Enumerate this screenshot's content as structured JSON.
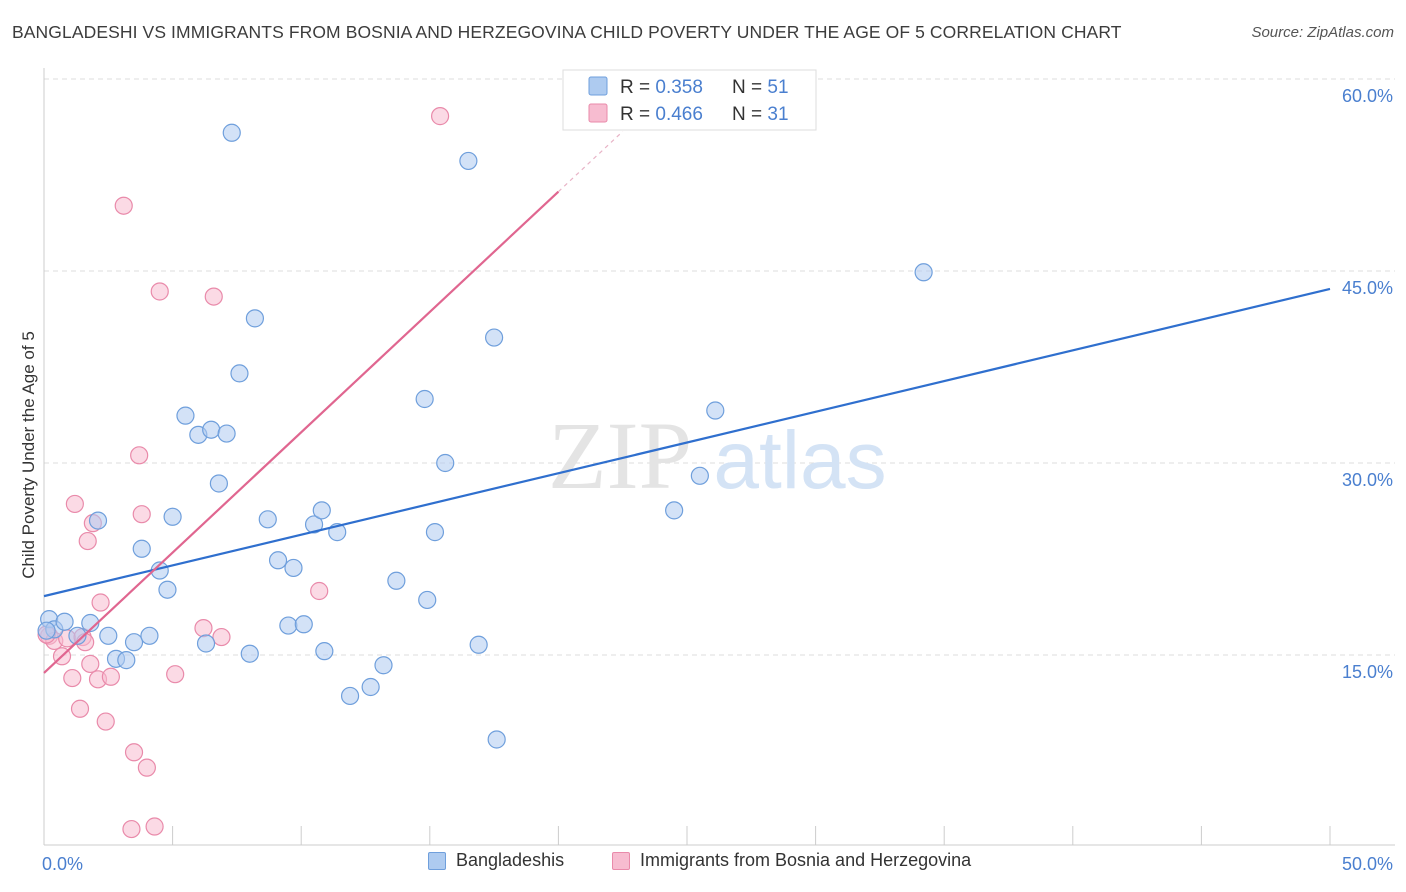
{
  "title": "BANGLADESHI VS IMMIGRANTS FROM BOSNIA AND HERZEGOVINA CHILD POVERTY UNDER THE AGE OF 5 CORRELATION CHART",
  "source": "Source: ZipAtlas.com",
  "watermark": {
    "zip": "ZIP",
    "atlas": "atlas"
  },
  "colors": {
    "blue_fill": "#aecbf0",
    "blue_stroke": "#6f9fdc",
    "blue_line": "#2f6fce",
    "pink_fill": "#f7bcd0",
    "pink_stroke": "#e98aaa",
    "pink_line": "#e06690",
    "tick_text": "#4a7fcf",
    "grid": "#dddddd"
  },
  "legend": {
    "rows": [
      {
        "r_label": "R = ",
        "r_value": "0.358",
        "n_label": "N = ",
        "n_value": "51",
        "series": "blue"
      },
      {
        "r_label": "R = ",
        "r_value": "0.466",
        "n_label": "N = ",
        "n_value": "31",
        "series": "pink"
      }
    ]
  },
  "bottom_legend": [
    "Bangladeshis",
    "Immigrants from Bosnia and Herzegovina"
  ],
  "chart_data": {
    "type": "scatter",
    "title": "BANGLADESHI VS IMMIGRANTS FROM BOSNIA AND HERZEGOVINA CHILD POVERTY UNDER THE AGE OF 5 CORRELATION CHART",
    "xlabel": "",
    "ylabel": "Child Poverty Under the Age of 5",
    "xlim": [
      0,
      50
    ],
    "ylim": [
      0,
      62
    ],
    "x_tick_labels": [
      "0.0%",
      "50.0%"
    ],
    "y_ticks": [
      15,
      30,
      45,
      60
    ],
    "y_tick_labels": [
      "15.0%",
      "30.0%",
      "45.0%",
      "60.0%"
    ],
    "grid": true,
    "legend_position": "top-center",
    "series": [
      {
        "name": "Bangladeshis",
        "color": "blue",
        "r": 0.358,
        "n": 51,
        "trend": {
          "x": [
            0,
            50
          ],
          "y": [
            19.6,
            43.6
          ]
        },
        "points": [
          [
            0.2,
            17.8
          ],
          [
            0.4,
            17.0
          ],
          [
            0.8,
            17.6
          ],
          [
            1.3,
            16.5
          ],
          [
            1.8,
            17.5
          ],
          [
            2.1,
            25.5
          ],
          [
            2.5,
            16.5
          ],
          [
            2.8,
            14.7
          ],
          [
            3.2,
            14.6
          ],
          [
            3.5,
            16.0
          ],
          [
            3.8,
            23.3
          ],
          [
            4.1,
            16.5
          ],
          [
            4.5,
            21.6
          ],
          [
            4.8,
            20.1
          ],
          [
            5.0,
            25.8
          ],
          [
            5.5,
            33.7
          ],
          [
            6.0,
            32.2
          ],
          [
            6.3,
            15.9
          ],
          [
            6.5,
            32.6
          ],
          [
            6.8,
            28.4
          ],
          [
            7.1,
            32.3
          ],
          [
            7.3,
            55.8
          ],
          [
            7.6,
            37.0
          ],
          [
            8.0,
            15.1
          ],
          [
            8.2,
            41.3
          ],
          [
            8.7,
            25.6
          ],
          [
            9.1,
            22.4
          ],
          [
            9.5,
            17.3
          ],
          [
            9.7,
            21.8
          ],
          [
            10.1,
            17.4
          ],
          [
            10.5,
            25.2
          ],
          [
            10.8,
            26.3
          ],
          [
            10.9,
            15.3
          ],
          [
            11.4,
            24.6
          ],
          [
            11.9,
            11.8
          ],
          [
            12.7,
            12.5
          ],
          [
            13.2,
            14.2
          ],
          [
            13.7,
            20.8
          ],
          [
            14.8,
            35.0
          ],
          [
            14.9,
            19.3
          ],
          [
            15.2,
            24.6
          ],
          [
            15.6,
            30.0
          ],
          [
            16.5,
            53.6
          ],
          [
            16.9,
            15.8
          ],
          [
            17.5,
            39.8
          ],
          [
            17.6,
            8.4
          ],
          [
            24.5,
            26.3
          ],
          [
            25.5,
            29.0
          ],
          [
            26.1,
            34.1
          ],
          [
            34.2,
            44.9
          ],
          [
            0.1,
            16.9
          ]
        ]
      },
      {
        "name": "Immigrants from Bosnia and Herzegovina",
        "color": "pink",
        "r": 0.466,
        "n": 31,
        "trend": {
          "x": [
            0,
            20
          ],
          "y": [
            13.6,
            51.2
          ]
        },
        "trend_extension": {
          "x": [
            20,
            22.5
          ],
          "y": [
            51.2,
            55.9
          ]
        },
        "points": [
          [
            0.2,
            16.5
          ],
          [
            0.4,
            16.1
          ],
          [
            0.7,
            14.9
          ],
          [
            0.9,
            16.3
          ],
          [
            1.1,
            13.2
          ],
          [
            1.2,
            26.8
          ],
          [
            1.5,
            16.4
          ],
          [
            1.4,
            10.8
          ],
          [
            1.6,
            16.0
          ],
          [
            1.7,
            23.9
          ],
          [
            1.8,
            14.3
          ],
          [
            1.9,
            25.3
          ],
          [
            2.1,
            13.1
          ],
          [
            2.2,
            19.1
          ],
          [
            2.4,
            9.8
          ],
          [
            2.6,
            13.3
          ],
          [
            3.1,
            50.1
          ],
          [
            3.4,
            1.4
          ],
          [
            3.5,
            7.4
          ],
          [
            3.7,
            30.6
          ],
          [
            3.8,
            26.0
          ],
          [
            4.0,
            6.2
          ],
          [
            4.3,
            1.6
          ],
          [
            4.5,
            43.4
          ],
          [
            5.1,
            13.5
          ],
          [
            6.2,
            17.1
          ],
          [
            6.6,
            43.0
          ],
          [
            6.9,
            16.4
          ],
          [
            10.7,
            20.0
          ],
          [
            15.4,
            57.1
          ],
          [
            0.1,
            16.6
          ]
        ]
      }
    ]
  }
}
